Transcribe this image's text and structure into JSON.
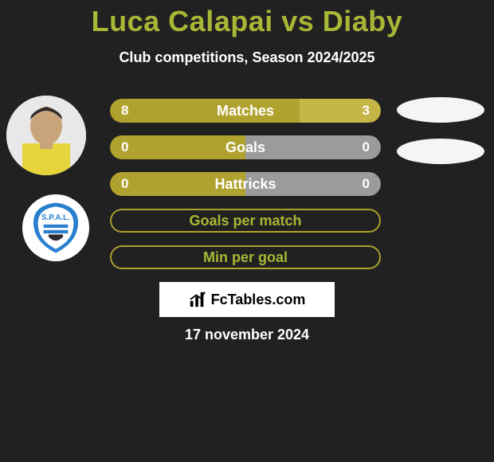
{
  "title": "Luca Calapai vs Diaby",
  "subtitle": "Club competitions, Season 2024/2025",
  "date": "17 november 2024",
  "brand": "FcTables.com",
  "colors": {
    "accent": "#a8b735",
    "bar_olive": "#b0a22e",
    "bar_olive_light": "#c5b647",
    "bar_gray": "#9b9b9b",
    "outline": "#b0a22e",
    "club_blue": "#2980d0"
  },
  "bars": [
    {
      "label": "Matches",
      "left": "8",
      "right": "3",
      "left_pct": 70,
      "right_pct": 30,
      "fill": "both"
    },
    {
      "label": "Goals",
      "left": "0",
      "right": "0",
      "left_pct": 50,
      "right_pct": 50,
      "fill": "gray"
    },
    {
      "label": "Hattricks",
      "left": "0",
      "right": "0",
      "left_pct": 50,
      "right_pct": 50,
      "fill": "gray"
    },
    {
      "label": "Goals per match",
      "left": "",
      "right": "",
      "left_pct": 0,
      "right_pct": 0,
      "fill": "outline"
    },
    {
      "label": "Min per goal",
      "left": "",
      "right": "",
      "left_pct": 0,
      "right_pct": 0,
      "fill": "outline"
    }
  ],
  "club_label": "S.P.A.L."
}
